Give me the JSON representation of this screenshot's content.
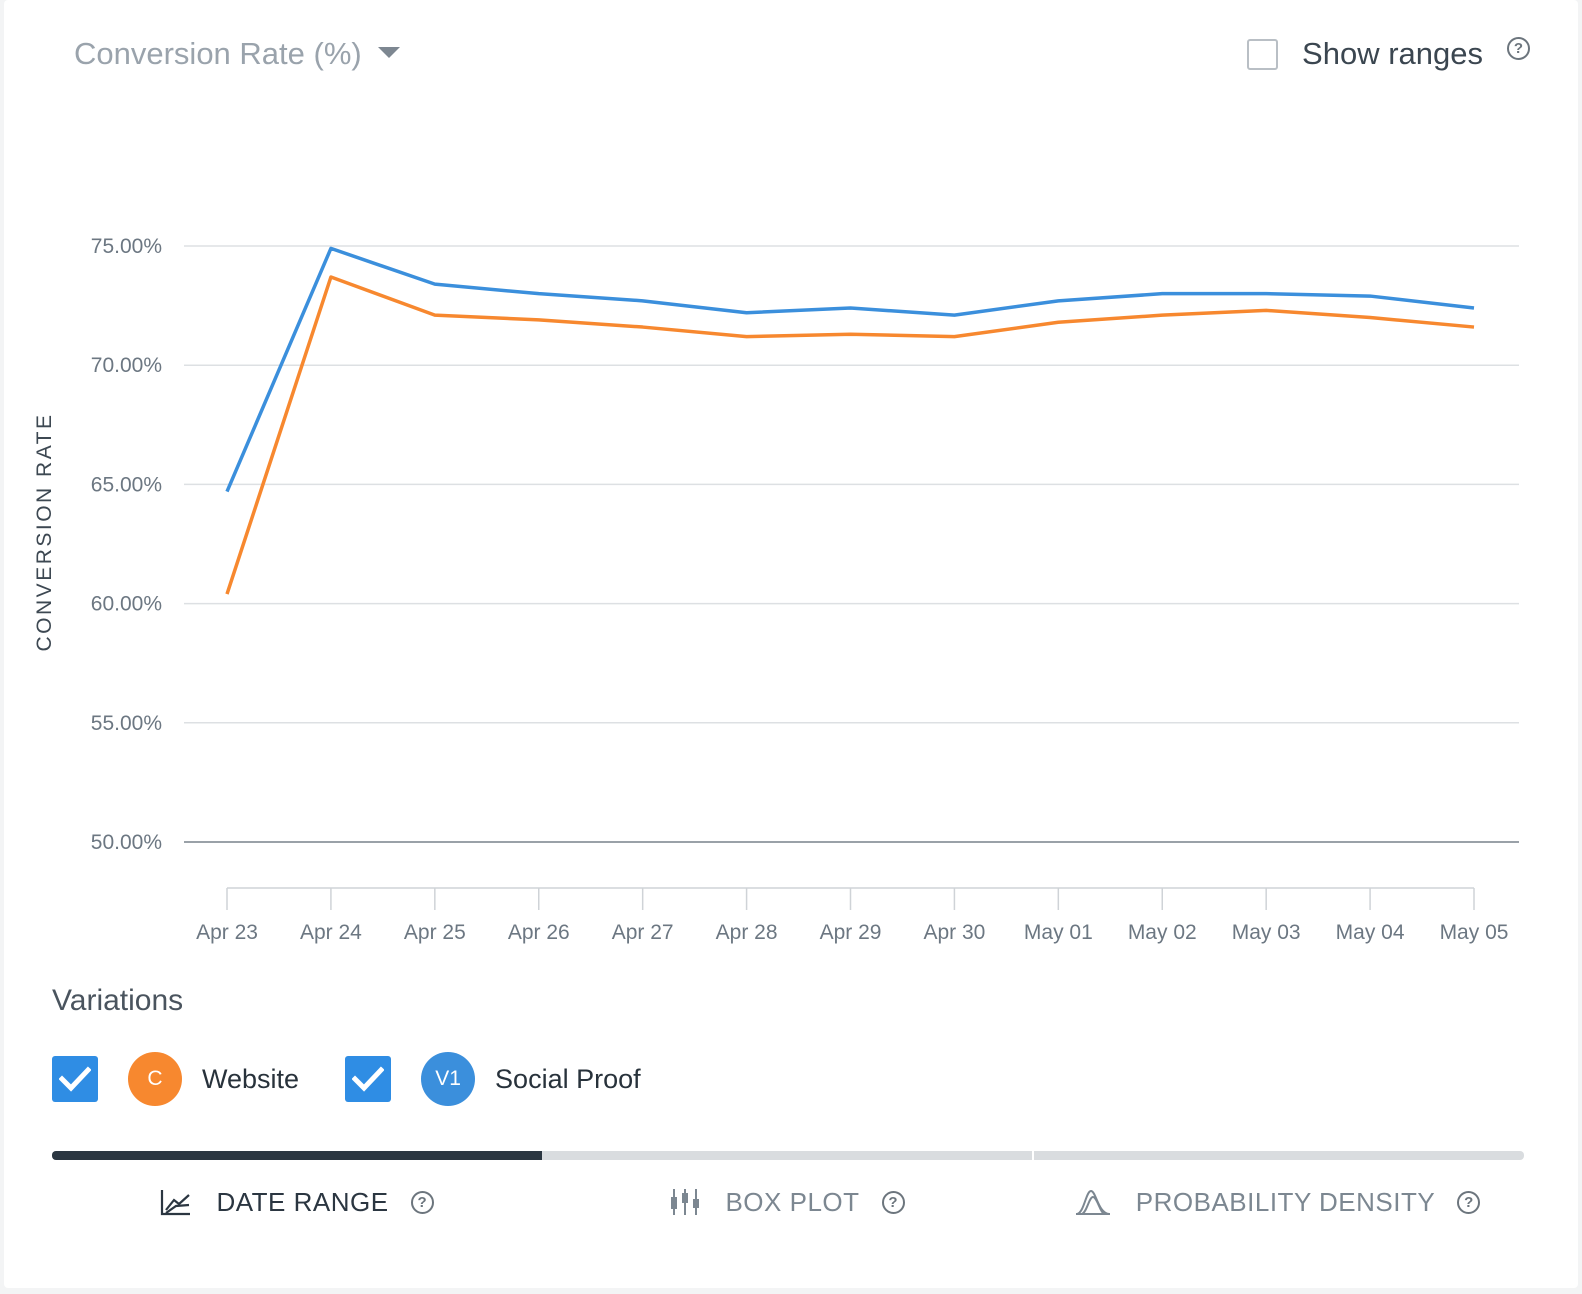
{
  "header": {
    "metric_label": "Conversion Rate (%)",
    "show_ranges_label": "Show ranges",
    "show_ranges_checked": false
  },
  "chart_data": {
    "type": "line",
    "ylabel": "CONVERSION RATE",
    "xlabel": "",
    "x": [
      "Apr 23",
      "Apr 24",
      "Apr 25",
      "Apr 26",
      "Apr 27",
      "Apr 28",
      "Apr 29",
      "Apr 30",
      "May 01",
      "May 02",
      "May 03",
      "May 04",
      "May 05"
    ],
    "yticks": [
      75,
      70,
      65,
      60,
      55,
      50
    ],
    "ytick_labels": [
      "75.00%",
      "70.00%",
      "65.00%",
      "60.00%",
      "55.00%",
      "50.00%"
    ],
    "ylim": [
      50,
      75
    ],
    "grid": true,
    "series": [
      {
        "name": "Website",
        "color": "#f7882f",
        "values": [
          60.4,
          73.7,
          72.1,
          71.9,
          71.6,
          71.2,
          71.3,
          71.2,
          71.8,
          72.1,
          72.3,
          72.0,
          71.6
        ]
      },
      {
        "name": "Social Proof",
        "color": "#3b8fdc",
        "values": [
          64.7,
          74.9,
          73.4,
          73.0,
          72.7,
          72.2,
          72.4,
          72.1,
          72.7,
          73.0,
          73.0,
          72.9,
          72.4
        ]
      }
    ]
  },
  "variations": {
    "title": "Variations",
    "items": [
      {
        "badge": "C",
        "name": "Website",
        "color": "#f7882f",
        "checked": true
      },
      {
        "badge": "V1",
        "name": "Social Proof",
        "color": "#3b8fdc",
        "checked": true
      }
    ]
  },
  "tabs": [
    {
      "label": "DATE RANGE",
      "icon": "line-chart-icon",
      "active": true
    },
    {
      "label": "BOX PLOT",
      "icon": "box-plot-icon",
      "active": false
    },
    {
      "label": "PROBABILITY DENSITY",
      "icon": "density-curve-icon",
      "active": false
    }
  ]
}
